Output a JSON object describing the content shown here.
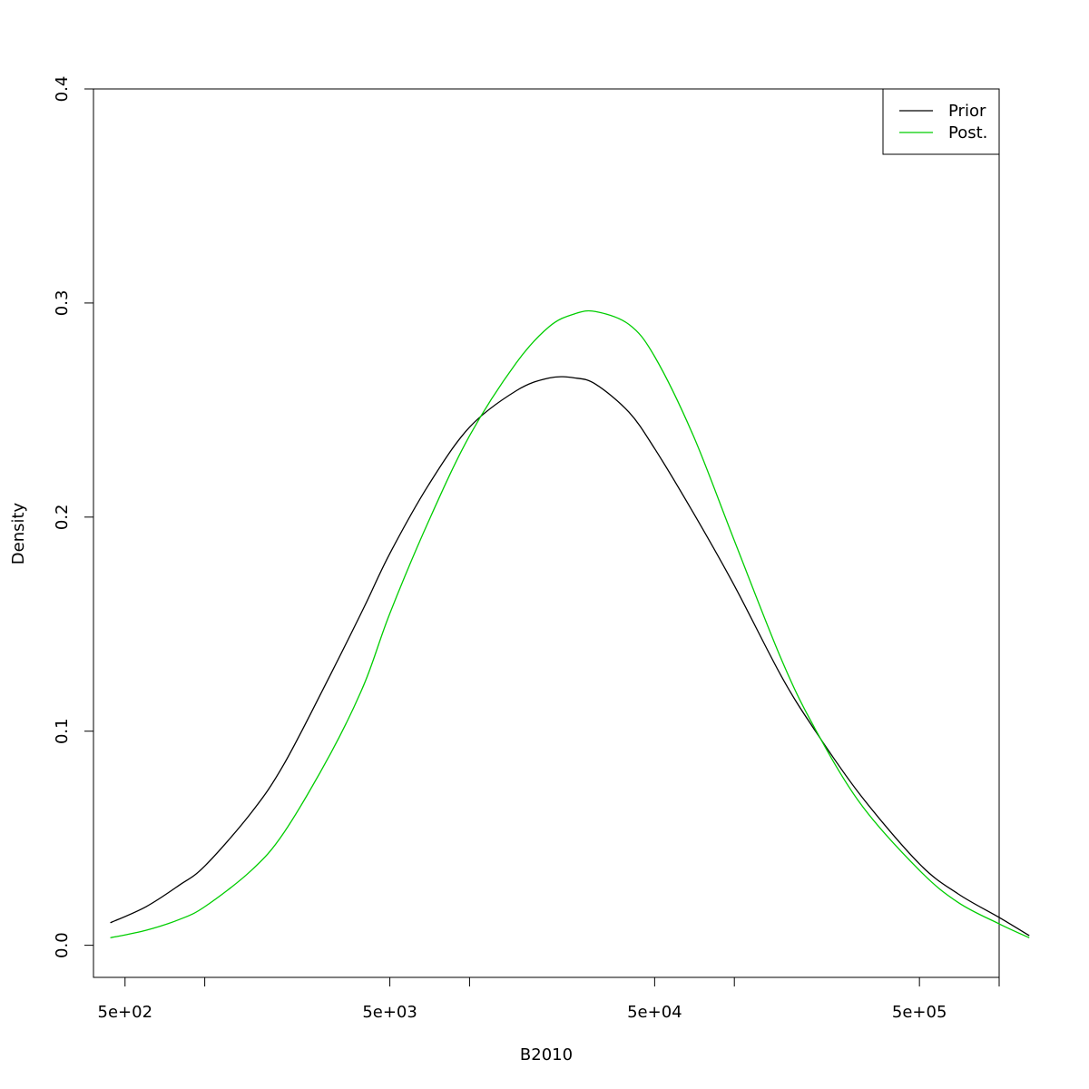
{
  "chart_data": {
    "type": "line",
    "title": "",
    "xlabel": "B2010",
    "ylabel": "Density",
    "x_scale": "log",
    "xlim": [
      380,
      1000000
    ],
    "ylim": [
      -0.015,
      0.4
    ],
    "x_ticks": [
      {
        "value": 500,
        "label": "5e+02"
      },
      {
        "value": 1000,
        "label": ""
      },
      {
        "value": 5000,
        "label": "5e+03"
      },
      {
        "value": 10000,
        "label": ""
      },
      {
        "value": 50000,
        "label": "5e+04"
      },
      {
        "value": 100000,
        "label": ""
      },
      {
        "value": 500000,
        "label": "5e+05"
      },
      {
        "value": 1000000,
        "label": ""
      }
    ],
    "y_ticks": [
      {
        "value": 0.0,
        "label": "0.0"
      },
      {
        "value": 0.1,
        "label": "0.1"
      },
      {
        "value": 0.2,
        "label": "0.2"
      },
      {
        "value": 0.3,
        "label": "0.3"
      },
      {
        "value": 0.4,
        "label": "0.4"
      }
    ],
    "grid": false,
    "legend": {
      "position": "top-right",
      "box": true
    },
    "series": [
      {
        "name": "Prior",
        "color": "#000000",
        "x": [
          440,
          600,
          800,
          1000,
          1500,
          2000,
          3000,
          4000,
          5000,
          7000,
          10000,
          15000,
          20000,
          25000,
          30000,
          40000,
          50000,
          70000,
          100000,
          150000,
          200000,
          300000,
          500000,
          700000,
          1000000,
          1300000
        ],
        "y": [
          0.0105,
          0.018,
          0.028,
          0.037,
          0.062,
          0.085,
          0.127,
          0.158,
          0.183,
          0.215,
          0.242,
          0.259,
          0.265,
          0.265,
          0.262,
          0.249,
          0.232,
          0.202,
          0.168,
          0.126,
          0.101,
          0.07,
          0.038,
          0.024,
          0.013,
          0.0045
        ]
      },
      {
        "name": "Post.",
        "color": "#00cd00",
        "x": [
          440,
          600,
          800,
          1000,
          1500,
          2000,
          3000,
          4000,
          5000,
          7000,
          10000,
          15000,
          20000,
          25000,
          30000,
          40000,
          50000,
          70000,
          100000,
          150000,
          200000,
          300000,
          500000,
          700000,
          1000000,
          1300000
        ],
        "y": [
          0.0035,
          0.007,
          0.012,
          0.018,
          0.035,
          0.053,
          0.09,
          0.122,
          0.155,
          0.198,
          0.238,
          0.272,
          0.289,
          0.295,
          0.296,
          0.29,
          0.275,
          0.238,
          0.189,
          0.134,
          0.102,
          0.066,
          0.035,
          0.02,
          0.01,
          0.0035
        ]
      }
    ]
  }
}
